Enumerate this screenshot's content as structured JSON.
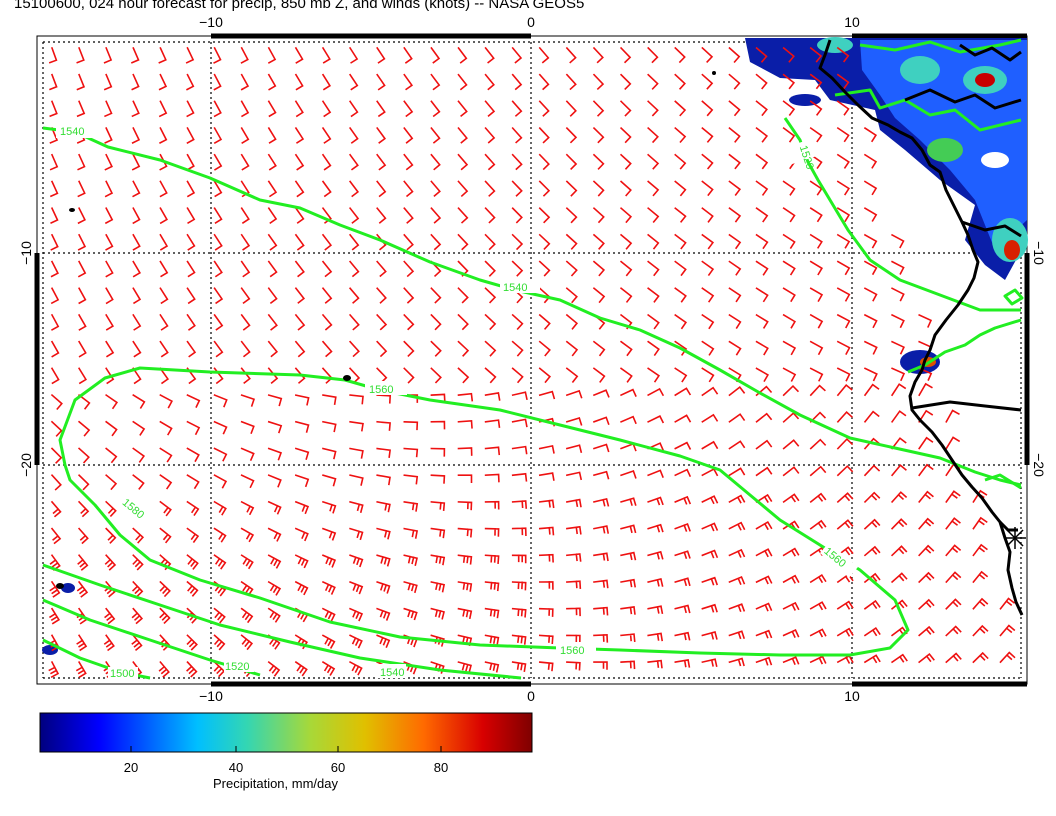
{
  "title": "15100600, 024 hour forecast for precip, 850 mb Z, and winds (knots) -- NASA GEOS5",
  "map": {
    "lon_labels": [
      "−10",
      "0",
      "10"
    ],
    "lat_labels": [
      "−10",
      "−20"
    ],
    "contour_labels": [
      "1540",
      "1520",
      "1540",
      "1560",
      "1580",
      "1560",
      "1560",
      "1540",
      "1520",
      "1500"
    ],
    "colors": {
      "wind_barbs": "#ee1111",
      "contours": "#22ee22",
      "coastline": "#000000",
      "grid": "#000000"
    }
  },
  "colorbar": {
    "ticks": [
      "20",
      "40",
      "60",
      "80"
    ],
    "title": "Precipitation, mm/day",
    "colors": [
      "#00007f",
      "#0000ff",
      "#00bfff",
      "#33d6b3",
      "#a8d838",
      "#e0c000",
      "#ff6a00",
      "#d80000",
      "#7f0000"
    ]
  }
}
